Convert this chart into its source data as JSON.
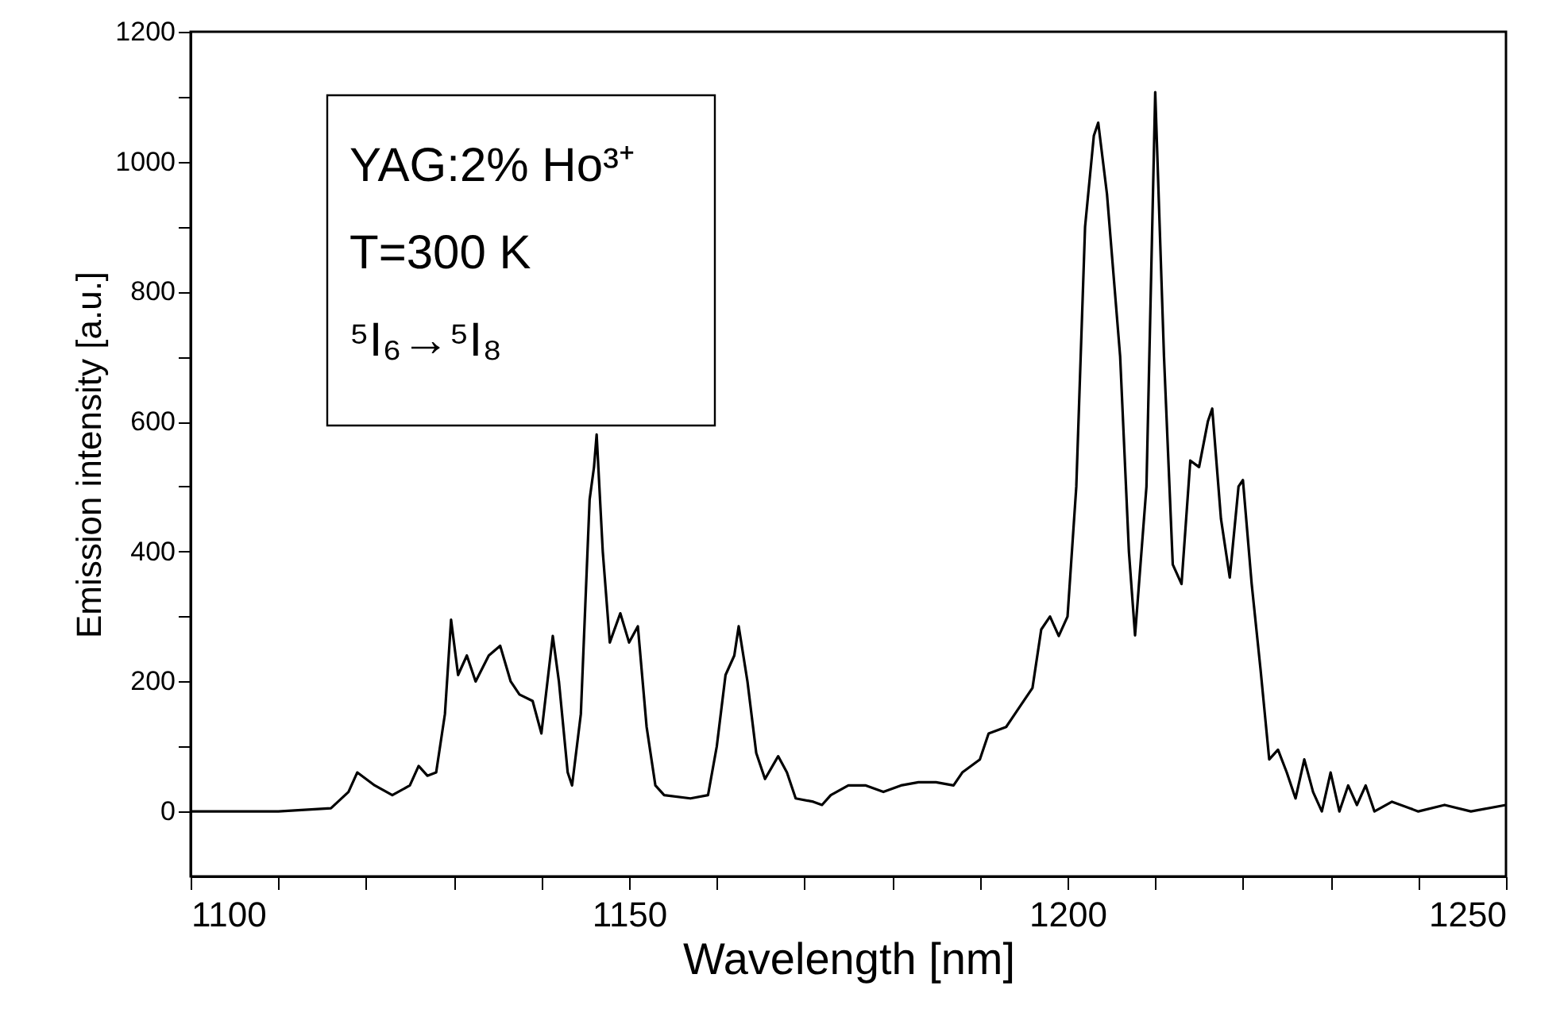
{
  "chart_data": {
    "type": "line",
    "xlabel": "Wavelength [nm]",
    "ylabel": "Emission intensity [a.u.]",
    "xlim": [
      1100,
      1250
    ],
    "ylim": [
      -100,
      1200
    ],
    "xticks": [
      1100,
      {
        "value": 1110,
        "label": null
      },
      {
        "value": 1120,
        "label": null
      },
      {
        "value": 1130,
        "label": null
      },
      {
        "value": 1140,
        "label": null
      },
      1150,
      {
        "value": 1160,
        "label": null
      },
      {
        "value": 1170,
        "label": null
      },
      {
        "value": 1180,
        "label": null
      },
      {
        "value": 1190,
        "label": null
      },
      1200,
      {
        "value": 1210,
        "label": null
      },
      {
        "value": 1220,
        "label": null
      },
      {
        "value": 1230,
        "label": null
      },
      {
        "value": 1240,
        "label": null
      },
      1250
    ],
    "yticks": [
      0,
      {
        "value": 100,
        "label": null
      },
      200,
      {
        "value": 300,
        "label": null
      },
      400,
      {
        "value": 500,
        "label": null
      },
      600,
      {
        "value": 700,
        "label": null
      },
      800,
      {
        "value": 900,
        "label": null
      },
      1000,
      {
        "value": 1100,
        "label": null
      },
      1200
    ],
    "grid": false,
    "marker": "none",
    "line_style": "solid",
    "annotations": [
      "YAG:2% Ho³⁺",
      "T=300 K",
      "⁵I₆→⁵I₈"
    ],
    "series": [
      {
        "color": "#000000",
        "x": [
          1100,
          1110,
          1116,
          1118,
          1119,
          1121,
          1123,
          1125,
          1126,
          1127,
          1128,
          1129,
          1129.7,
          1130.5,
          1131.5,
          1132.5,
          1134,
          1135.3,
          1136.5,
          1137.5,
          1139,
          1140,
          1141.3,
          1142,
          1143,
          1143.5,
          1144.5,
          1145.5,
          1146,
          1146.3,
          1147,
          1147.8,
          1149,
          1150,
          1151,
          1152,
          1153,
          1154,
          1157,
          1159,
          1160,
          1161,
          1162,
          1162.5,
          1163.5,
          1164.5,
          1165.5,
          1167,
          1168,
          1169,
          1171,
          1172,
          1173,
          1175,
          1177,
          1179,
          1181,
          1183,
          1185,
          1187,
          1188,
          1190,
          1191,
          1193,
          1194.5,
          1196,
          1197,
          1198,
          1199,
          1200,
          1201,
          1202,
          1203,
          1203.5,
          1204.5,
          1206,
          1207,
          1207.7,
          1209,
          1210,
          1211,
          1212,
          1213,
          1214,
          1215,
          1216,
          1216.5,
          1217.5,
          1218.5,
          1219.5,
          1220,
          1221,
          1222,
          1223,
          1224,
          1225,
          1226,
          1227,
          1228,
          1229,
          1230,
          1231,
          1232,
          1233,
          1234,
          1235,
          1237,
          1240,
          1243,
          1246,
          1250
        ],
        "values": [
          0,
          0,
          5,
          30,
          60,
          40,
          25,
          40,
          70,
          55,
          60,
          150,
          295,
          210,
          240,
          200,
          240,
          255,
          200,
          180,
          170,
          120,
          270,
          200,
          60,
          40,
          150,
          480,
          530,
          580,
          400,
          260,
          305,
          260,
          285,
          130,
          40,
          25,
          20,
          25,
          100,
          210,
          240,
          285,
          200,
          90,
          50,
          85,
          60,
          20,
          15,
          10,
          25,
          40,
          40,
          30,
          40,
          45,
          45,
          40,
          60,
          80,
          120,
          130,
          160,
          190,
          280,
          300,
          270,
          300,
          500,
          900,
          1040,
          1060,
          950,
          700,
          400,
          271,
          500,
          1107,
          700,
          380,
          350,
          540,
          530,
          600,
          620,
          450,
          360,
          500,
          510,
          350,
          220,
          80,
          95,
          60,
          20,
          80,
          30,
          0,
          60,
          0,
          40,
          10,
          40,
          0,
          15,
          0,
          10,
          0,
          10
        ]
      }
    ]
  }
}
